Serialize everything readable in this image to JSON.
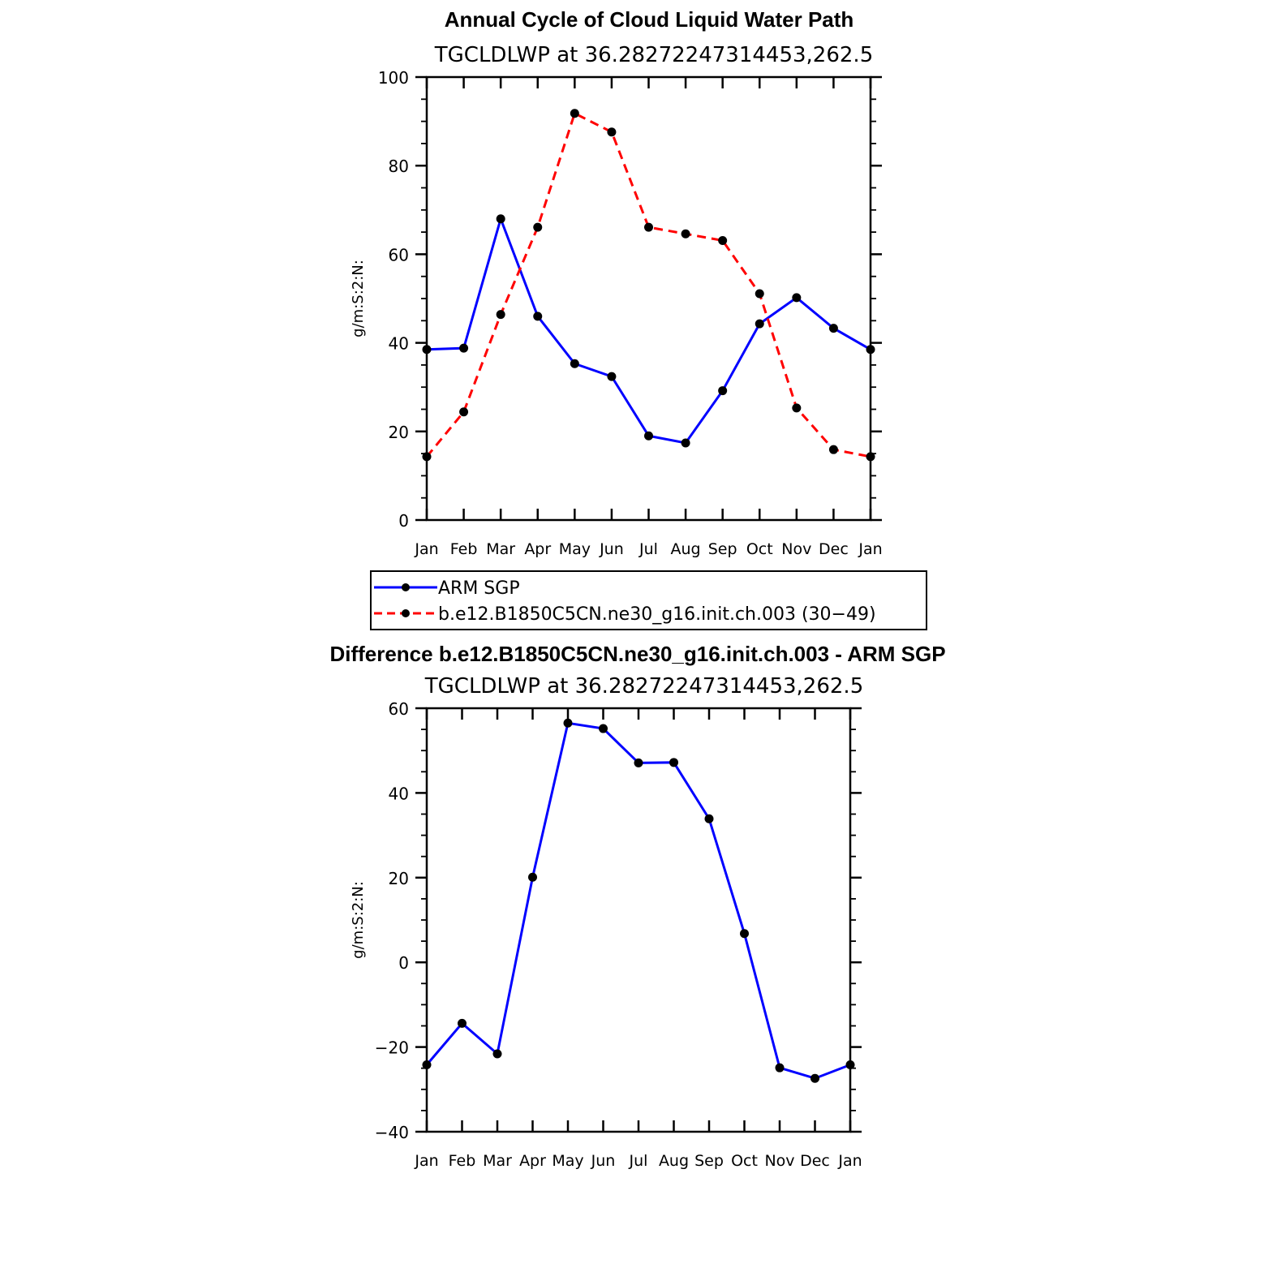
{
  "chart_data": [
    {
      "type": "line",
      "title": "Annual Cycle of Cloud Liquid Water Path",
      "subtitle": "TGCLDLWP at 36.28272247314453,262.5",
      "xlabel": "",
      "ylabel": "g/m:S:2:N:",
      "categories": [
        "Jan",
        "Feb",
        "Mar",
        "Apr",
        "May",
        "Jun",
        "Jul",
        "Aug",
        "Sep",
        "Oct",
        "Nov",
        "Dec",
        "Jan"
      ],
      "ylim": [
        0,
        100
      ],
      "yticks": [
        0,
        20,
        40,
        60,
        80,
        100
      ],
      "series": [
        {
          "name": "ARM SGP",
          "color": "#0000ff",
          "dash": "solid",
          "values": [
            38.5,
            38.8,
            68.0,
            46.0,
            35.3,
            32.4,
            19.0,
            17.4,
            29.2,
            44.3,
            50.2,
            43.3,
            38.5
          ]
        },
        {
          "name": "b.e12.B1850C5CN.ne30_g16.init.ch.003 (30−49)",
          "color": "#ff0000",
          "dash": "dashed",
          "values": [
            14.3,
            24.4,
            46.4,
            66.1,
            91.8,
            87.6,
            66.1,
            64.6,
            63.1,
            51.1,
            25.3,
            15.9,
            14.3
          ]
        }
      ],
      "legend": "below"
    },
    {
      "type": "line",
      "title": "Difference b.e12.B1850C5CN.ne30_g16.init.ch.003 - ARM SGP",
      "subtitle": "TGCLDLWP at 36.28272247314453,262.5",
      "xlabel": "",
      "ylabel": "g/m:S:2:N:",
      "categories": [
        "Jan",
        "Feb",
        "Mar",
        "Apr",
        "May",
        "Jun",
        "Jul",
        "Aug",
        "Sep",
        "Oct",
        "Nov",
        "Dec",
        "Jan"
      ],
      "ylim": [
        -40,
        60
      ],
      "yticks": [
        -40,
        -20,
        0,
        20,
        40,
        60
      ],
      "ytick_labels": [
        "−40",
        "−20",
        "0",
        "20",
        "40",
        "60"
      ],
      "series": [
        {
          "name": "Difference",
          "color": "#0000ff",
          "dash": "solid",
          "values": [
            -24.2,
            -14.4,
            -21.6,
            20.1,
            56.5,
            55.2,
            47.1,
            47.2,
            33.9,
            6.8,
            -24.9,
            -27.4,
            -24.2
          ]
        }
      ]
    }
  ]
}
